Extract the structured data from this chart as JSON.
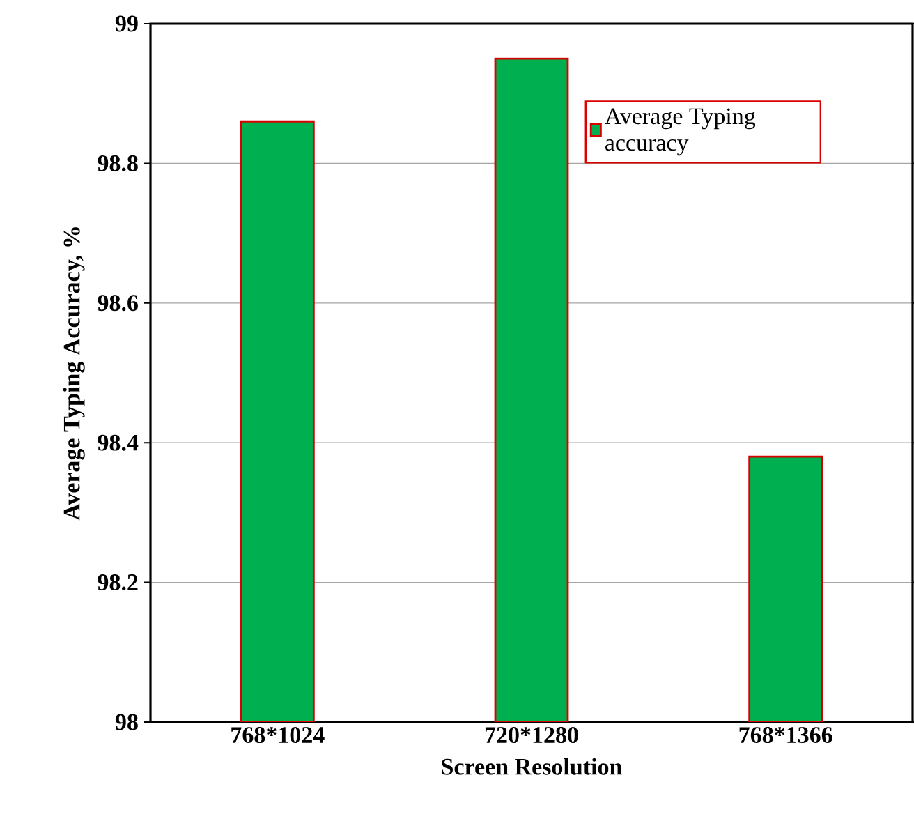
{
  "chart_data": {
    "type": "bar",
    "xlabel": "Screen Resolution",
    "ylabel": "Average Typing Accuracy, %",
    "categories": [
      "768*1024",
      "720*1280",
      "768*1366"
    ],
    "series": [
      {
        "name": "Average Typing accuracy",
        "color": "#00b050",
        "values": [
          98.86,
          98.95,
          98.38
        ]
      }
    ],
    "ylim": [
      98,
      99
    ],
    "yticks": [
      98,
      98.2,
      98.4,
      98.6,
      98.8,
      99
    ],
    "grid": "y",
    "legend": "top right"
  }
}
